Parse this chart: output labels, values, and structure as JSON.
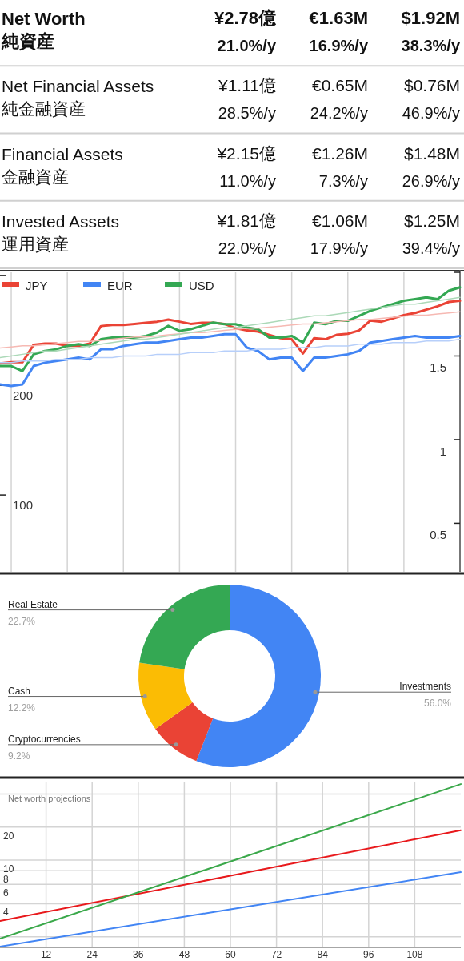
{
  "chart_data": [
    {
      "type": "other",
      "annotations": [
        "Net Worth",
        "純資産",
        "¥2.78億",
        "€1.63M",
        "$1.92M",
        "21.0%/y",
        "16.9%/y",
        "38.3%/y",
        "Net Financial Assets",
        "純金融資産",
        "¥1.11億",
        "€0.65M",
        "$0.76M",
        "28.5%/y",
        "24.2%/y",
        "46.9%/y",
        "Financial Assets",
        "金融資産",
        "¥2.15億",
        "€1.26M",
        "$1.48M",
        "11.0%/y",
        "7.3%/y",
        "26.9%/y",
        "Invested Assets",
        "運用資産",
        "¥1.81億",
        "€1.06M",
        "$1.25M",
        "22.0%/y",
        "17.9%/y",
        "39.4%/y"
      ]
    },
    {
      "type": "line",
      "categories": [
        null,
        null,
        null,
        null,
        null,
        null,
        null,
        null,
        null,
        null,
        null,
        null,
        null,
        null,
        null,
        null,
        null,
        null,
        null,
        null,
        null,
        null,
        null,
        null,
        null,
        null,
        null,
        null,
        null,
        null,
        null,
        null,
        null,
        null,
        null,
        null,
        null,
        null,
        null,
        null,
        null,
        null
      ],
      "ylim": [
        30,
        303
      ],
      "yticks": [
        100,
        200,
        {
          "value": 300,
          "label": null
        }
      ],
      "y2lim": [
        0.21,
        2.0
      ],
      "y2ticks": [
        0.5,
        1,
        1.5,
        {
          "value": 2,
          "label": null
        }
      ],
      "grid": "x",
      "legend": "top left",
      "tick_labels": "y",
      "series": [
        {
          "color": "#f6b9b3",
          "values": [
            234,
            235,
            236,
            236,
            237,
            238,
            239,
            240,
            240,
            241,
            242,
            243,
            244,
            244,
            245,
            246,
            247,
            248,
            248,
            249,
            250,
            251,
            252,
            252,
            253,
            254,
            255,
            256,
            256,
            257,
            258,
            259,
            260,
            260,
            261,
            262,
            263,
            264,
            264,
            265,
            266,
            267
          ]
        },
        {
          "color": "#b7cffa",
          "axis": "y2",
          "values": [
            1.46,
            1.46,
            1.47,
            1.47,
            1.47,
            1.48,
            1.48,
            1.48,
            1.49,
            1.49,
            1.49,
            1.5,
            1.5,
            1.5,
            1.51,
            1.51,
            1.51,
            1.52,
            1.52,
            1.52,
            1.53,
            1.53,
            1.53,
            1.54,
            1.54,
            1.54,
            1.55,
            1.55,
            1.55,
            1.56,
            1.56,
            1.56,
            1.57,
            1.57,
            1.57,
            1.58,
            1.58,
            1.58,
            1.59,
            1.59,
            1.59,
            1.6
          ]
        },
        {
          "color": "#acd9b8",
          "axis": "y2",
          "values": [
            1.49,
            1.5,
            1.51,
            1.52,
            1.53,
            1.53,
            1.54,
            1.55,
            1.56,
            1.57,
            1.58,
            1.59,
            1.6,
            1.6,
            1.61,
            1.62,
            1.63,
            1.64,
            1.65,
            1.66,
            1.67,
            1.67,
            1.68,
            1.69,
            1.7,
            1.71,
            1.72,
            1.73,
            1.74,
            1.74,
            1.75,
            1.76,
            1.77,
            1.78,
            1.79,
            1.8,
            1.81,
            1.81,
            1.82,
            1.83,
            1.84,
            1.85
          ]
        },
        {
          "name": "JPY",
          "color": "#ea4335",
          "values": [
            220,
            221,
            221,
            237,
            238,
            238,
            236,
            236,
            238,
            254,
            255,
            255,
            256,
            257,
            258,
            260,
            258,
            256,
            257,
            257,
            256,
            252,
            250,
            249,
            246,
            243,
            242,
            229,
            243,
            242,
            246,
            247,
            250,
            259,
            258,
            261,
            264,
            266,
            269,
            272,
            276,
            277
          ]
        },
        {
          "name": "EUR",
          "color": "#4285f4",
          "axis": "y2",
          "values": [
            1.33,
            1.32,
            1.33,
            1.44,
            1.46,
            1.47,
            1.48,
            1.49,
            1.48,
            1.54,
            1.54,
            1.56,
            1.57,
            1.58,
            1.58,
            1.59,
            1.6,
            1.61,
            1.61,
            1.62,
            1.63,
            1.63,
            1.55,
            1.53,
            1.48,
            1.49,
            1.49,
            1.41,
            1.49,
            1.49,
            1.5,
            1.51,
            1.53,
            1.58,
            1.59,
            1.6,
            1.61,
            1.62,
            1.61,
            1.61,
            1.61,
            1.62
          ]
        },
        {
          "name": "USD",
          "color": "#34a853",
          "axis": "y2",
          "values": [
            1.44,
            1.44,
            1.41,
            1.51,
            1.53,
            1.54,
            1.56,
            1.57,
            1.56,
            1.6,
            1.61,
            1.61,
            1.61,
            1.62,
            1.64,
            1.68,
            1.65,
            1.66,
            1.68,
            1.7,
            1.69,
            1.69,
            1.67,
            1.66,
            1.61,
            1.61,
            1.62,
            1.58,
            1.7,
            1.69,
            1.71,
            1.71,
            1.74,
            1.77,
            1.79,
            1.81,
            1.83,
            1.84,
            1.85,
            1.84,
            1.89,
            1.91
          ]
        }
      ]
    },
    {
      "type": "donut",
      "categories": [
        "Investments",
        "Cryptocurrencies",
        "Cash",
        "Real Estate"
      ],
      "values": [
        56.0,
        9.2,
        12.2,
        22.7
      ],
      "colors": [
        "#4285f4",
        "#ea4335",
        "#fbbc04",
        "#34a853"
      ],
      "value_labels": [
        "56.0%",
        "9.2%",
        "12.2%",
        "22.7%"
      ]
    },
    {
      "type": "line",
      "title": "Net worth projections",
      "log": "y",
      "grid": true,
      "xlim": [
        0,
        120
      ],
      "xticks": [
        12,
        24,
        36,
        48,
        60,
        72,
        84,
        96,
        108
      ],
      "ylim": [
        1.6,
        51
      ],
      "yticks": [
        {
          "value": 2,
          "label": null
        },
        4,
        6,
        8,
        10,
        20,
        {
          "value": 40,
          "label": null
        }
      ],
      "series": [
        {
          "color": "#e8191c",
          "x": [
            0,
            60,
            120
          ],
          "values": [
            2.78,
            7.21,
            18.7
          ]
        },
        {
          "color": "#4285f4",
          "x": [
            0,
            60,
            120
          ],
          "values": [
            1.63,
            3.56,
            7.76
          ]
        },
        {
          "color": "#3aa84a",
          "x": [
            0,
            60,
            120
          ],
          "values": [
            1.92,
            9.71,
            49.2
          ]
        }
      ]
    }
  ]
}
